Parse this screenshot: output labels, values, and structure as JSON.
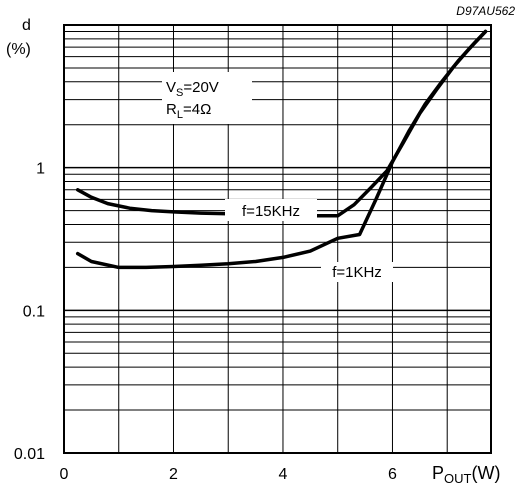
{
  "chart_data": {
    "type": "line",
    "code": "D97AU562",
    "ylabel": "d",
    "yunit": "(%)",
    "xlabel_main": "P",
    "xlabel_sub": "OUT",
    "xlabel_unit": "(W)",
    "xlim": [
      0,
      7.8
    ],
    "ylim": [
      0.01,
      10
    ],
    "yscale": "log",
    "grid": true,
    "x_ticks": [
      0,
      2,
      4,
      6
    ],
    "y_ticks": [
      {
        "value": 0.01,
        "label": "0.01"
      },
      {
        "value": 0.1,
        "label": "0.1"
      },
      {
        "value": 1,
        "label": "1"
      }
    ],
    "conditions": [
      {
        "main": "V",
        "sub": "S",
        "rest": "=20V"
      },
      {
        "main": "R",
        "sub": "L",
        "rest": "=4Ω"
      }
    ],
    "series": [
      {
        "name": "f=15KHz",
        "x": [
          0.25,
          0.5,
          0.8,
          1.2,
          1.6,
          2.0,
          2.5,
          3.0,
          3.5,
          4.0,
          4.5,
          5.0,
          5.3,
          5.6,
          5.9,
          6.2,
          6.5,
          6.8,
          7.1,
          7.4,
          7.7
        ],
        "y": [
          0.7,
          0.62,
          0.56,
          0.52,
          0.5,
          0.49,
          0.48,
          0.475,
          0.47,
          0.465,
          0.46,
          0.46,
          0.55,
          0.72,
          0.95,
          1.5,
          2.4,
          3.5,
          5.0,
          6.8,
          9.0
        ]
      },
      {
        "name": "f=1KHz",
        "x": [
          0.25,
          0.5,
          1.0,
          1.5,
          2.0,
          2.5,
          3.0,
          3.5,
          4.0,
          4.5,
          5.0,
          5.4,
          5.7,
          6.0,
          6.3,
          6.6,
          6.9,
          7.2,
          7.5,
          7.7
        ],
        "y": [
          0.25,
          0.22,
          0.2,
          0.2,
          0.203,
          0.207,
          0.212,
          0.22,
          0.235,
          0.26,
          0.32,
          0.34,
          0.6,
          1.1,
          1.8,
          2.8,
          4.0,
          5.6,
          7.5,
          9.0
        ]
      }
    ]
  }
}
